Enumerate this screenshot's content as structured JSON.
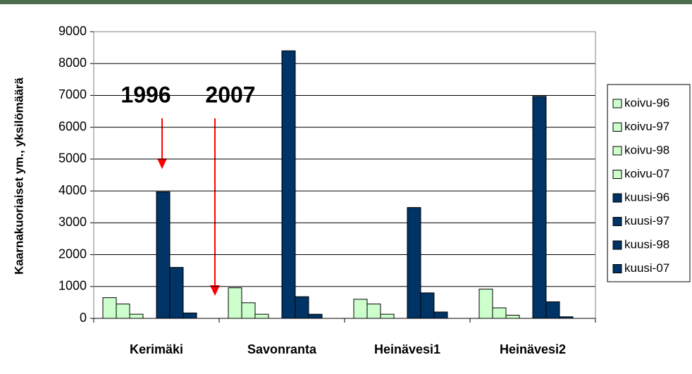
{
  "chart_data": {
    "type": "bar",
    "ylabel": "Kaarnakuoriaiset ym., yksilömäärä",
    "annotations": [
      "1996",
      "2007"
    ],
    "categories": [
      "Kerimäki",
      "Savonranta",
      "Heinävesi1",
      "Heinävesi2"
    ],
    "series": [
      {
        "name": "koivu-96",
        "color": "#ccffcc",
        "values": [
          650,
          960,
          600,
          920
        ]
      },
      {
        "name": "koivu-97",
        "color": "#ccffcc",
        "values": [
          450,
          490,
          450,
          330
        ]
      },
      {
        "name": "koivu-98",
        "color": "#ccffcc",
        "values": [
          130,
          130,
          130,
          100
        ]
      },
      {
        "name": "koivu-07",
        "color": "#ccffcc",
        "values": [
          0,
          0,
          0,
          0
        ]
      },
      {
        "name": "kuusi-96",
        "color": "#003366",
        "values": [
          3970,
          8400,
          3480,
          6970
        ]
      },
      {
        "name": "kuusi-97",
        "color": "#003366",
        "values": [
          1600,
          680,
          800,
          520
        ]
      },
      {
        "name": "kuusi-98",
        "color": "#003366",
        "values": [
          170,
          130,
          200,
          50
        ]
      },
      {
        "name": "kuusi-07",
        "color": "#003366",
        "values": [
          0,
          0,
          0,
          0
        ]
      }
    ],
    "ylim": [
      0,
      9000
    ],
    "yticks": [
      0,
      1000,
      2000,
      3000,
      4000,
      5000,
      6000,
      7000,
      8000,
      9000
    ],
    "grid": true,
    "legend": "right"
  }
}
